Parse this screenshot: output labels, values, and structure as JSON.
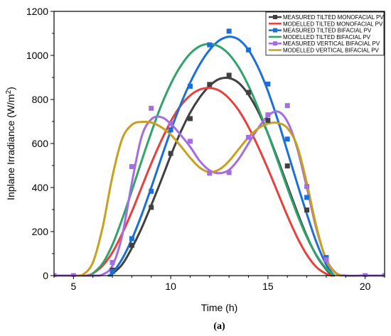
{
  "chart_data": {
    "type": "line",
    "caption": "(a)",
    "xlabel": "Time (h)",
    "ylabel": "Inplane Irradiance (W/m",
    "ylabel_sup": "2",
    "ylabel_close": ")",
    "xlim": [
      4,
      21
    ],
    "ylim": [
      0,
      1200
    ],
    "xticks": [
      5,
      10,
      15,
      20
    ],
    "yticks": [
      0,
      200,
      400,
      600,
      800,
      1000,
      1200
    ],
    "grid": false,
    "legend_position": "top-right",
    "series": [
      {
        "name": "MEASURED TILTED MONOFACIAL PV",
        "color": "#404040",
        "marker": "square",
        "points": [
          [
            7,
            25
          ],
          [
            8,
            138
          ],
          [
            9,
            310
          ],
          [
            10,
            555
          ],
          [
            11,
            713
          ],
          [
            12,
            868
          ],
          [
            13,
            910
          ],
          [
            14,
            832
          ],
          [
            15,
            705
          ],
          [
            16,
            498
          ],
          [
            17,
            298
          ],
          [
            18,
            72
          ]
        ],
        "curve": [
          [
            6.9,
            0
          ],
          [
            7,
            8
          ],
          [
            7.5,
            50
          ],
          [
            8,
            125
          ],
          [
            8.5,
            215
          ],
          [
            9,
            320
          ],
          [
            9.5,
            430
          ],
          [
            10,
            545
          ],
          [
            10.5,
            650
          ],
          [
            11,
            740
          ],
          [
            11.5,
            810
          ],
          [
            12,
            862
          ],
          [
            12.5,
            893
          ],
          [
            13,
            897
          ],
          [
            13.5,
            875
          ],
          [
            14,
            822
          ],
          [
            14.5,
            745
          ],
          [
            15,
            645
          ],
          [
            15.5,
            530
          ],
          [
            16,
            410
          ],
          [
            16.5,
            290
          ],
          [
            17,
            180
          ],
          [
            17.5,
            90
          ],
          [
            18,
            28
          ],
          [
            18.3,
            0
          ]
        ]
      },
      {
        "name": "MODELLED TILTED MONOFACIAL PV",
        "color": "#e8403c",
        "marker": "none",
        "curve": [
          [
            5.7,
            0
          ],
          [
            6,
            10
          ],
          [
            6.5,
            45
          ],
          [
            7,
            105
          ],
          [
            7.5,
            190
          ],
          [
            8,
            290
          ],
          [
            8.5,
            400
          ],
          [
            9,
            510
          ],
          [
            9.5,
            610
          ],
          [
            10,
            700
          ],
          [
            10.5,
            770
          ],
          [
            11,
            818
          ],
          [
            11.5,
            845
          ],
          [
            12,
            852
          ],
          [
            12.5,
            840
          ],
          [
            13,
            805
          ],
          [
            13.5,
            750
          ],
          [
            14,
            675
          ],
          [
            14.5,
            585
          ],
          [
            15,
            485
          ],
          [
            15.5,
            378
          ],
          [
            16,
            272
          ],
          [
            16.5,
            175
          ],
          [
            17,
            95
          ],
          [
            17.5,
            38
          ],
          [
            18,
            8
          ],
          [
            18.3,
            0
          ]
        ]
      },
      {
        "name": "MEASURED TILTED BIFACIAL PV",
        "color": "#1a6fd8",
        "marker": "square",
        "points": [
          [
            7,
            18
          ],
          [
            8,
            168
          ],
          [
            9,
            383
          ],
          [
            10,
            662
          ],
          [
            11,
            860
          ],
          [
            12,
            1048
          ],
          [
            13,
            1110
          ],
          [
            14,
            1025
          ],
          [
            15,
            870
          ],
          [
            16,
            620
          ],
          [
            17,
            355
          ],
          [
            18,
            82
          ]
        ],
        "curve": [
          [
            6.8,
            0
          ],
          [
            7,
            12
          ],
          [
            7.5,
            75
          ],
          [
            8,
            165
          ],
          [
            8.5,
            275
          ],
          [
            9,
            400
          ],
          [
            9.5,
            530
          ],
          [
            10,
            658
          ],
          [
            10.5,
            775
          ],
          [
            11,
            876
          ],
          [
            11.5,
            960
          ],
          [
            12,
            1025
          ],
          [
            12.5,
            1068
          ],
          [
            13,
            1085
          ],
          [
            13.5,
            1072
          ],
          [
            14,
            1025
          ],
          [
            14.5,
            945
          ],
          [
            15,
            838
          ],
          [
            15.5,
            708
          ],
          [
            16,
            565
          ],
          [
            16.5,
            420
          ],
          [
            17,
            280
          ],
          [
            17.5,
            150
          ],
          [
            18,
            50
          ],
          [
            18.4,
            0
          ]
        ]
      },
      {
        "name": "MODELLED TILTED BIFACIAL PV",
        "color": "#2fa36a",
        "marker": "none",
        "curve": [
          [
            5.8,
            0
          ],
          [
            6,
            10
          ],
          [
            6.5,
            55
          ],
          [
            7,
            140
          ],
          [
            7.5,
            255
          ],
          [
            8,
            385
          ],
          [
            8.5,
            520
          ],
          [
            9,
            650
          ],
          [
            9.5,
            770
          ],
          [
            10,
            870
          ],
          [
            10.5,
            950
          ],
          [
            11,
            1008
          ],
          [
            11.5,
            1042
          ],
          [
            12,
            1052
          ],
          [
            12.5,
            1040
          ],
          [
            13,
            1005
          ],
          [
            13.5,
            945
          ],
          [
            14,
            862
          ],
          [
            14.5,
            760
          ],
          [
            15,
            645
          ],
          [
            15.5,
            522
          ],
          [
            16,
            398
          ],
          [
            16.5,
            280
          ],
          [
            17,
            175
          ],
          [
            17.5,
            92
          ],
          [
            18,
            32
          ],
          [
            18.4,
            0
          ]
        ]
      },
      {
        "name": "MEASURED VERTICAL BIFACIAL PV",
        "color": "#a46ee0",
        "marker": "square",
        "points": [
          [
            4,
            0
          ],
          [
            5,
            0
          ],
          [
            7,
            60
          ],
          [
            8,
            495
          ],
          [
            9,
            760
          ],
          [
            10,
            690
          ],
          [
            11,
            610
          ],
          [
            12,
            465
          ],
          [
            13,
            468
          ],
          [
            14,
            628
          ],
          [
            15,
            730
          ],
          [
            16,
            772
          ],
          [
            17,
            405
          ],
          [
            18,
            72
          ],
          [
            20,
            0
          ],
          [
            21,
            0
          ]
        ],
        "curve": [
          [
            4,
            0
          ],
          [
            5,
            0
          ],
          [
            6,
            0
          ],
          [
            6.5,
            5
          ],
          [
            7,
            45
          ],
          [
            7.5,
            180
          ],
          [
            8,
            420
          ],
          [
            8.5,
            630
          ],
          [
            9,
            710
          ],
          [
            9.5,
            720
          ],
          [
            10,
            690
          ],
          [
            10.5,
            640
          ],
          [
            11,
            585
          ],
          [
            11.5,
            520
          ],
          [
            12,
            478
          ],
          [
            12.5,
            465
          ],
          [
            13,
            480
          ],
          [
            13.5,
            530
          ],
          [
            14,
            600
          ],
          [
            14.5,
            670
          ],
          [
            15,
            725
          ],
          [
            15.5,
            745
          ],
          [
            16,
            700
          ],
          [
            16.5,
            580
          ],
          [
            17,
            400
          ],
          [
            17.5,
            210
          ],
          [
            18,
            75
          ],
          [
            18.5,
            12
          ],
          [
            19,
            0
          ],
          [
            20,
            0
          ],
          [
            21,
            0
          ]
        ]
      },
      {
        "name": "MODELLED VERTICAL BIFACIAL PV",
        "color": "#c8a020",
        "marker": "none",
        "curve": [
          [
            5.1,
            0
          ],
          [
            5.5,
            5
          ],
          [
            6,
            60
          ],
          [
            6.5,
            220
          ],
          [
            7,
            450
          ],
          [
            7.5,
            620
          ],
          [
            8,
            685
          ],
          [
            8.5,
            698
          ],
          [
            9,
            695
          ],
          [
            9.5,
            675
          ],
          [
            10,
            640
          ],
          [
            10.5,
            590
          ],
          [
            11,
            535
          ],
          [
            11.5,
            490
          ],
          [
            12,
            470
          ],
          [
            12.5,
            482
          ],
          [
            13,
            520
          ],
          [
            13.5,
            575
          ],
          [
            14,
            628
          ],
          [
            14.5,
            668
          ],
          [
            15,
            690
          ],
          [
            15.5,
            693
          ],
          [
            16,
            670
          ],
          [
            16.5,
            590
          ],
          [
            17,
            420
          ],
          [
            17.5,
            220
          ],
          [
            18,
            70
          ],
          [
            18.5,
            10
          ],
          [
            18.8,
            0
          ]
        ]
      }
    ]
  }
}
